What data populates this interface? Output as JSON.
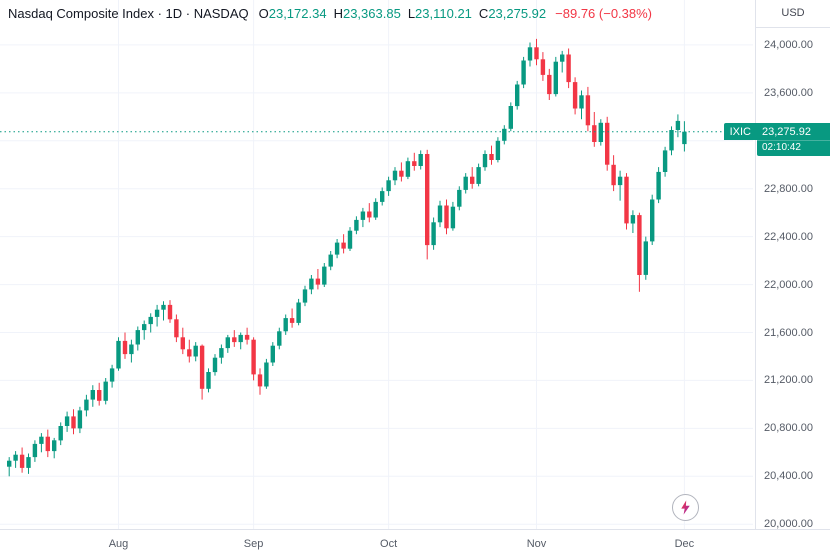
{
  "colors": {
    "up": "#089981",
    "down": "#f23645",
    "grid": "#f0f3fa",
    "axis_text": "#555b66",
    "title_text": "#131722",
    "badge_bg": "#089981",
    "border": "#e0e3eb",
    "bolt_pink": "#f23645",
    "bolt_purple": "#9c27b0"
  },
  "legend": {
    "title": "Nasdaq Composite Index · 1D · NASDAQ",
    "ohlc": [
      {
        "label": "O",
        "value": "23,172.34"
      },
      {
        "label": "H",
        "value": "23,363.85"
      },
      {
        "label": "L",
        "value": "23,110.21"
      },
      {
        "label": "C",
        "value": "23,275.92"
      }
    ],
    "change": "−89.76 (−0.38%)"
  },
  "price_axis": {
    "currency": "USD",
    "labels": [
      {
        "text": "24,000.00",
        "value": 24000
      },
      {
        "text": "23,600.00",
        "value": 23600
      },
      {
        "text": "23,200.00",
        "value": 23200
      },
      {
        "text": "22,800.00",
        "value": 22800
      },
      {
        "text": "22,400.00",
        "value": 22400
      },
      {
        "text": "22,000.00",
        "value": 22000
      },
      {
        "text": "21,600.00",
        "value": 21600
      },
      {
        "text": "21,200.00",
        "value": 21200
      },
      {
        "text": "20,800.00",
        "value": 20800
      },
      {
        "text": "20,400.00",
        "value": 20400
      },
      {
        "text": "20,000.00",
        "value": 20000
      }
    ],
    "badge": {
      "symbol": "IXIC",
      "price": "23,275.92",
      "countdown": "02:10:42"
    }
  },
  "chart_data": {
    "type": "candlestick",
    "title": "Nasdaq Composite Index",
    "symbol": "IXIC",
    "interval": "1D",
    "exchange": "NASDAQ",
    "currency": "USD",
    "ohlc_current": {
      "open": 23172.34,
      "high": 23363.85,
      "low": 23110.21,
      "close": 23275.92,
      "change": -89.76,
      "change_pct": -0.38
    },
    "prev_close": 23365.68,
    "current_price": 23275.92,
    "y_range": [
      19960,
      24375
    ],
    "y_gridlines": [
      20000,
      20400,
      20800,
      21200,
      21600,
      22000,
      22400,
      22800,
      23200,
      23600,
      24000
    ],
    "x_ticks": [
      {
        "label": "Aug",
        "index": 17
      },
      {
        "label": "Sep",
        "index": 38
      },
      {
        "label": "Oct",
        "index": 59
      },
      {
        "label": "Nov",
        "index": 82
      },
      {
        "label": "Dec",
        "index": 105
      }
    ],
    "candles": [
      [
        20480,
        20560,
        20400,
        20530
      ],
      [
        20530,
        20610,
        20470,
        20580
      ],
      [
        20580,
        20640,
        20430,
        20470
      ],
      [
        20470,
        20590,
        20420,
        20560
      ],
      [
        20560,
        20700,
        20520,
        20670
      ],
      [
        20670,
        20760,
        20600,
        20730
      ],
      [
        20730,
        20790,
        20560,
        20610
      ],
      [
        20610,
        20720,
        20550,
        20700
      ],
      [
        20700,
        20850,
        20660,
        20820
      ],
      [
        20820,
        20940,
        20770,
        20900
      ],
      [
        20900,
        20960,
        20750,
        20800
      ],
      [
        20800,
        20980,
        20760,
        20950
      ],
      [
        20950,
        21080,
        20900,
        21040
      ],
      [
        21040,
        21160,
        20980,
        21120
      ],
      [
        21120,
        21180,
        20990,
        21030
      ],
      [
        21030,
        21220,
        21000,
        21190
      ],
      [
        21190,
        21330,
        21140,
        21300
      ],
      [
        21300,
        21560,
        21280,
        21530
      ],
      [
        21530,
        21600,
        21380,
        21420
      ],
      [
        21420,
        21540,
        21350,
        21500
      ],
      [
        21500,
        21650,
        21450,
        21620
      ],
      [
        21620,
        21700,
        21540,
        21670
      ],
      [
        21670,
        21760,
        21600,
        21730
      ],
      [
        21730,
        21830,
        21650,
        21790
      ],
      [
        21790,
        21860,
        21700,
        21830
      ],
      [
        21830,
        21870,
        21680,
        21710
      ],
      [
        21710,
        21750,
        21520,
        21560
      ],
      [
        21560,
        21640,
        21420,
        21460
      ],
      [
        21460,
        21540,
        21350,
        21400
      ],
      [
        21400,
        21520,
        21360,
        21490
      ],
      [
        21490,
        21500,
        21040,
        21130
      ],
      [
        21130,
        21300,
        21100,
        21270
      ],
      [
        21270,
        21420,
        21240,
        21390
      ],
      [
        21390,
        21500,
        21340,
        21470
      ],
      [
        21470,
        21580,
        21430,
        21560
      ],
      [
        21560,
        21620,
        21480,
        21520
      ],
      [
        21520,
        21600,
        21460,
        21580
      ],
      [
        21580,
        21640,
        21500,
        21540
      ],
      [
        21540,
        21560,
        21200,
        21250
      ],
      [
        21250,
        21300,
        21080,
        21150
      ],
      [
        21150,
        21380,
        21130,
        21350
      ],
      [
        21350,
        21520,
        21320,
        21490
      ],
      [
        21490,
        21640,
        21460,
        21610
      ],
      [
        21610,
        21750,
        21580,
        21720
      ],
      [
        21720,
        21800,
        21640,
        21680
      ],
      [
        21680,
        21880,
        21660,
        21850
      ],
      [
        21850,
        21990,
        21820,
        21960
      ],
      [
        21960,
        22080,
        21920,
        22050
      ],
      [
        22050,
        22130,
        21960,
        22000
      ],
      [
        22000,
        22180,
        21980,
        22150
      ],
      [
        22150,
        22280,
        22120,
        22250
      ],
      [
        22250,
        22380,
        22220,
        22350
      ],
      [
        22350,
        22420,
        22260,
        22300
      ],
      [
        22300,
        22480,
        22280,
        22450
      ],
      [
        22450,
        22570,
        22420,
        22540
      ],
      [
        22540,
        22640,
        22480,
        22610
      ],
      [
        22610,
        22680,
        22520,
        22560
      ],
      [
        22560,
        22720,
        22540,
        22690
      ],
      [
        22690,
        22810,
        22660,
        22780
      ],
      [
        22780,
        22900,
        22740,
        22870
      ],
      [
        22870,
        22980,
        22830,
        22950
      ],
      [
        22950,
        23020,
        22860,
        22900
      ],
      [
        22900,
        23060,
        22880,
        23030
      ],
      [
        23030,
        23100,
        22950,
        22990
      ],
      [
        22990,
        23120,
        22960,
        23090
      ],
      [
        23090,
        23125,
        22210,
        22330
      ],
      [
        22330,
        22560,
        22290,
        22520
      ],
      [
        22520,
        22700,
        22480,
        22660
      ],
      [
        22660,
        22710,
        22420,
        22470
      ],
      [
        22470,
        22690,
        22450,
        22650
      ],
      [
        22650,
        22820,
        22620,
        22790
      ],
      [
        22790,
        22930,
        22760,
        22900
      ],
      [
        22900,
        22980,
        22800,
        22840
      ],
      [
        22840,
        23010,
        22820,
        22980
      ],
      [
        22980,
        23120,
        22950,
        23090
      ],
      [
        23090,
        23160,
        23000,
        23040
      ],
      [
        23040,
        23230,
        23020,
        23200
      ],
      [
        23200,
        23330,
        23170,
        23300
      ],
      [
        23300,
        23520,
        23280,
        23490
      ],
      [
        23490,
        23700,
        23460,
        23670
      ],
      [
        23670,
        23900,
        23640,
        23870
      ],
      [
        23870,
        24020,
        23820,
        23980
      ],
      [
        23980,
        24050,
        23830,
        23880
      ],
      [
        23880,
        23940,
        23700,
        23750
      ],
      [
        23750,
        23800,
        23540,
        23590
      ],
      [
        23590,
        23900,
        23570,
        23860
      ],
      [
        23860,
        23950,
        23770,
        23920
      ],
      [
        23920,
        23970,
        23640,
        23690
      ],
      [
        23690,
        23730,
        23420,
        23470
      ],
      [
        23470,
        23620,
        23380,
        23580
      ],
      [
        23580,
        23650,
        23280,
        23330
      ],
      [
        23330,
        23440,
        23150,
        23190
      ],
      [
        23190,
        23380,
        23160,
        23350
      ],
      [
        23350,
        23400,
        22950,
        23000
      ],
      [
        23000,
        23080,
        22780,
        22830
      ],
      [
        22830,
        22950,
        22700,
        22900
      ],
      [
        22900,
        22930,
        22460,
        22510
      ],
      [
        22510,
        22620,
        22430,
        22580
      ],
      [
        22580,
        22600,
        21940,
        22080
      ],
      [
        22080,
        22400,
        22040,
        22360
      ],
      [
        22360,
        22750,
        22330,
        22710
      ],
      [
        22710,
        22980,
        22680,
        22940
      ],
      [
        22940,
        23150,
        22900,
        23120
      ],
      [
        23120,
        23320,
        23080,
        23290
      ],
      [
        23290,
        23420,
        23230,
        23365.68
      ],
      [
        23172.34,
        23363.85,
        23110.21,
        23275.92
      ]
    ]
  }
}
